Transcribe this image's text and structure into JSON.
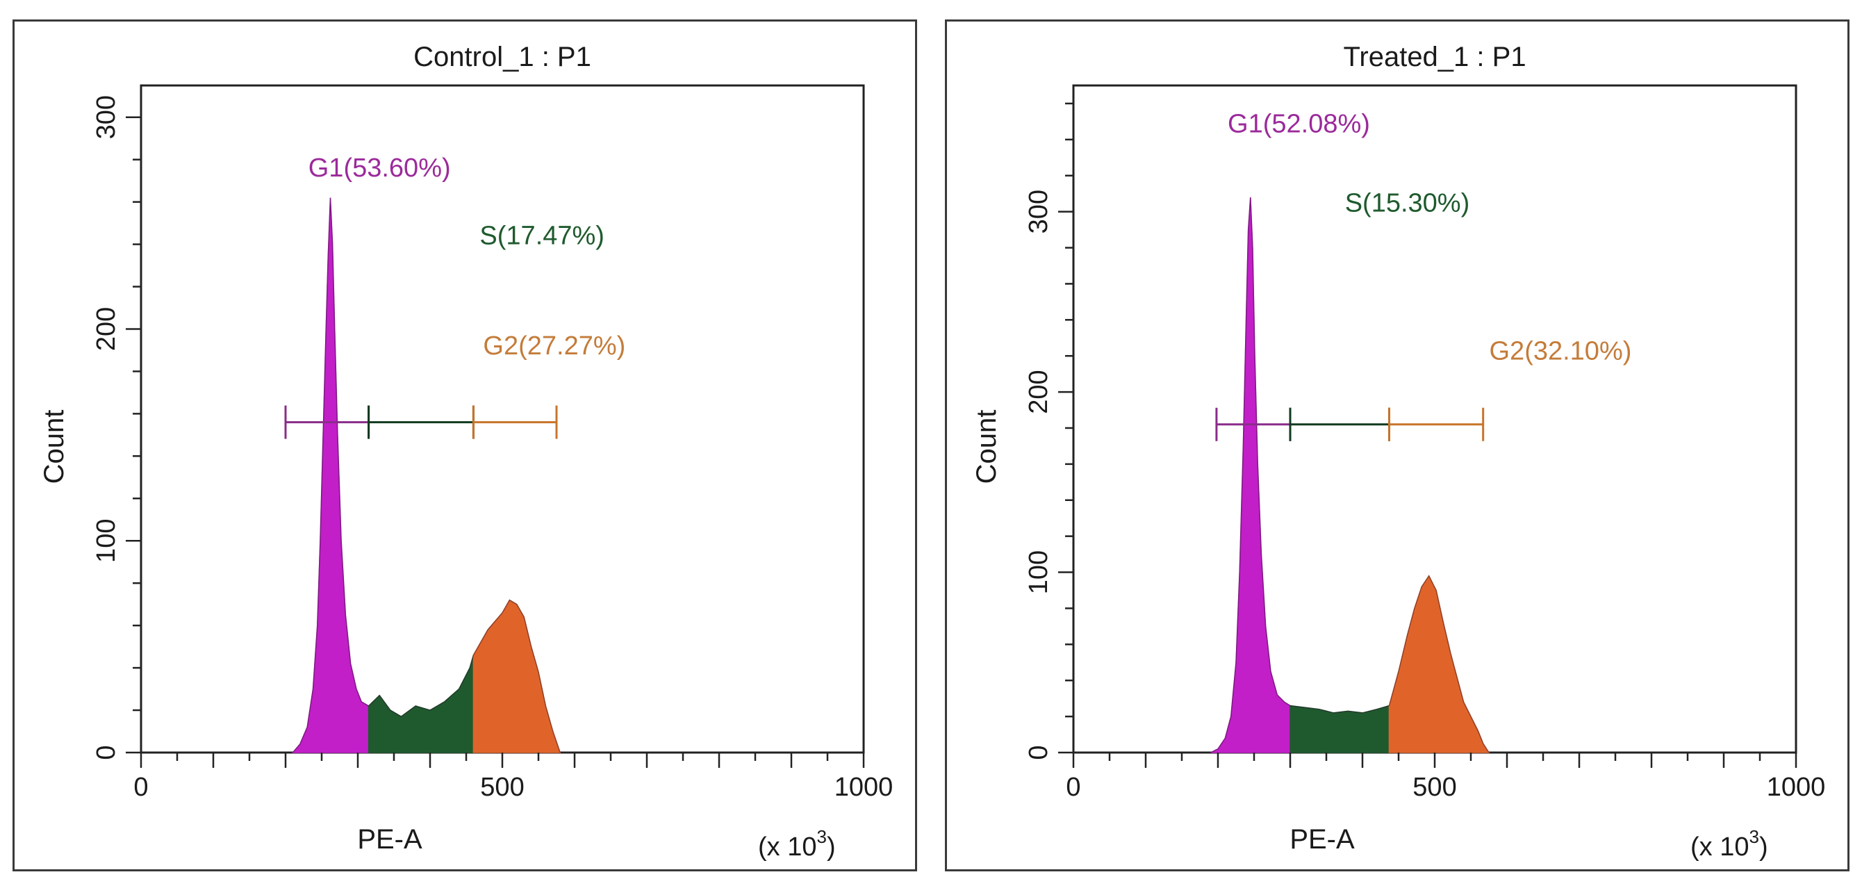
{
  "chart_data": [
    {
      "type": "area",
      "title": "Control_1 : P1",
      "xlabel": "PE-A",
      "ylabel": "Count",
      "x_multiplier_label": "(x 10",
      "x_multiplier_exp": "3",
      "close_paren": ")",
      "xlim": [
        0,
        1000
      ],
      "ylim": [
        0,
        315
      ],
      "x_ticks": [
        "0",
        "500",
        "1000"
      ],
      "y_ticks": [
        "0",
        "100",
        "200",
        "300"
      ],
      "gates": [
        {
          "name": "G1",
          "label": "G1(53.60%)",
          "percent": 53.6,
          "range": [
            200,
            315
          ],
          "color": "#c21fc9",
          "label_color": "#9b2a9b"
        },
        {
          "name": "S",
          "label": "S(17.47%)",
          "percent": 17.47,
          "range": [
            315,
            460
          ],
          "color": "#1f5a2e",
          "label_color": "#1f5a2e"
        },
        {
          "name": "G2",
          "label": "G2(27.27%)",
          "percent": 27.27,
          "range": [
            460,
            575
          ],
          "color": "#e0642a",
          "label_color": "#c47c3a"
        }
      ],
      "gate_bar_y": 156,
      "histogram": [
        [
          210,
          0
        ],
        [
          220,
          4
        ],
        [
          230,
          12
        ],
        [
          238,
          30
        ],
        [
          244,
          60
        ],
        [
          248,
          100
        ],
        [
          252,
          150
        ],
        [
          256,
          200
        ],
        [
          259,
          235
        ],
        [
          262,
          262
        ],
        [
          265,
          240
        ],
        [
          268,
          200
        ],
        [
          272,
          150
        ],
        [
          277,
          100
        ],
        [
          283,
          65
        ],
        [
          290,
          42
        ],
        [
          298,
          30
        ],
        [
          305,
          24
        ],
        [
          315,
          22
        ],
        [
          330,
          27
        ],
        [
          345,
          20
        ],
        [
          360,
          17
        ],
        [
          380,
          22
        ],
        [
          400,
          20
        ],
        [
          420,
          24
        ],
        [
          440,
          30
        ],
        [
          455,
          40
        ],
        [
          460,
          46
        ],
        [
          470,
          52
        ],
        [
          480,
          58
        ],
        [
          490,
          62
        ],
        [
          500,
          66
        ],
        [
          510,
          72
        ],
        [
          520,
          70
        ],
        [
          530,
          64
        ],
        [
          540,
          50
        ],
        [
          550,
          38
        ],
        [
          560,
          22
        ],
        [
          570,
          10
        ],
        [
          580,
          0
        ]
      ]
    },
    {
      "type": "area",
      "title": "Treated_1 : P1",
      "xlabel": "PE-A",
      "ylabel": "Count",
      "x_multiplier_label": "(x 10",
      "x_multiplier_exp": "3",
      "close_paren": ")",
      "xlim": [
        0,
        1000
      ],
      "ylim": [
        0,
        370
      ],
      "x_ticks": [
        "0",
        "500",
        "1000"
      ],
      "y_ticks": [
        "0",
        "100",
        "200",
        "300"
      ],
      "gates": [
        {
          "name": "G1",
          "label": "G1(52.08%)",
          "percent": 52.08,
          "range": [
            198,
            300
          ],
          "color": "#c21fc9",
          "label_color": "#9b2a9b"
        },
        {
          "name": "S",
          "label": "S(15.30%)",
          "percent": 15.3,
          "range": [
            300,
            437
          ],
          "color": "#1f5a2e",
          "label_color": "#1f5a2e"
        },
        {
          "name": "G2",
          "label": "G2(32.10%)",
          "percent": 32.1,
          "range": [
            437,
            567
          ],
          "color": "#e0642a",
          "label_color": "#c47c3a"
        }
      ],
      "gate_bar_y": 182,
      "histogram": [
        [
          190,
          0
        ],
        [
          200,
          2
        ],
        [
          210,
          8
        ],
        [
          218,
          20
        ],
        [
          225,
          50
        ],
        [
          230,
          100
        ],
        [
          235,
          170
        ],
        [
          239,
          240
        ],
        [
          242,
          290
        ],
        [
          245,
          308
        ],
        [
          248,
          280
        ],
        [
          251,
          220
        ],
        [
          255,
          160
        ],
        [
          260,
          110
        ],
        [
          266,
          70
        ],
        [
          273,
          45
        ],
        [
          282,
          32
        ],
        [
          292,
          28
        ],
        [
          300,
          26
        ],
        [
          320,
          25
        ],
        [
          340,
          24
        ],
        [
          360,
          22
        ],
        [
          380,
          23
        ],
        [
          400,
          22
        ],
        [
          420,
          24
        ],
        [
          437,
          26
        ],
        [
          450,
          45
        ],
        [
          462,
          65
        ],
        [
          472,
          80
        ],
        [
          482,
          92
        ],
        [
          492,
          98
        ],
        [
          502,
          90
        ],
        [
          512,
          72
        ],
        [
          522,
          55
        ],
        [
          532,
          40
        ],
        [
          540,
          28
        ],
        [
          550,
          20
        ],
        [
          560,
          12
        ],
        [
          567,
          5
        ],
        [
          575,
          0
        ]
      ]
    }
  ]
}
